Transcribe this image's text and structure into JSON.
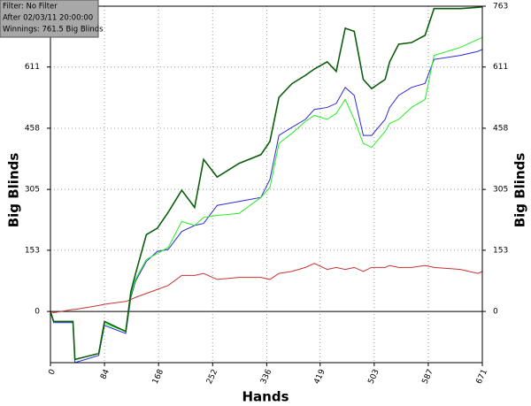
{
  "chart_data": {
    "type": "line",
    "xlabel": "Hands",
    "ylabel": "Big Blinds",
    "annotations": [
      "Filter: No Filter",
      "After 02/03/11 20:00:00",
      "Winnings: 761.5 Big Blinds"
    ],
    "x": [
      0,
      5,
      35,
      38,
      75,
      84,
      117,
      125,
      132,
      149,
      166,
      183,
      204,
      224,
      238,
      259,
      293,
      327,
      341,
      355,
      375,
      396,
      410,
      430,
      444,
      458,
      472,
      486,
      499,
      520,
      527,
      541,
      561,
      582,
      596,
      637,
      664,
      671
    ],
    "series": [
      {
        "color": "#c83232",
        "values": [
          0,
          -3,
          5,
          5,
          15,
          18,
          25,
          30,
          35,
          45,
          55,
          65,
          90,
          90,
          95,
          80,
          85,
          85,
          80,
          95,
          100,
          110,
          120,
          105,
          110,
          105,
          110,
          100,
          110,
          110,
          115,
          110,
          110,
          115,
          110,
          105,
          95,
          100
        ]
      },
      {
        "color": "#2a2ad8",
        "values": [
          0,
          -28,
          -28,
          -128,
          -110,
          -35,
          -55,
          35,
          75,
          125,
          150,
          155,
          200,
          215,
          220,
          265,
          275,
          285,
          330,
          440,
          460,
          480,
          505,
          510,
          520,
          560,
          540,
          440,
          440,
          480,
          510,
          540,
          560,
          570,
          630,
          640,
          650,
          655
        ]
      },
      {
        "color": "#22ee22",
        "values": [
          0,
          -25,
          -25,
          -120,
          -105,
          -30,
          -50,
          40,
          80,
          130,
          145,
          160,
          225,
          215,
          235,
          240,
          245,
          285,
          310,
          420,
          445,
          475,
          490,
          480,
          495,
          530,
          480,
          420,
          410,
          450,
          470,
          480,
          510,
          530,
          640,
          660,
          680,
          685
        ]
      },
      {
        "color": "#0b5e0b",
        "values": [
          0,
          -25,
          -25,
          -120,
          -105,
          -25,
          -50,
          50,
          93,
          192,
          208,
          248,
          303,
          260,
          380,
          336,
          370,
          392,
          425,
          535,
          569,
          590,
          606,
          624,
          600,
          708,
          700,
          580,
          557,
          580,
          624,
          668,
          672,
          690,
          757,
          757,
          760,
          761.5
        ]
      }
    ],
    "xlim": [
      0,
      671
    ],
    "ylim": [
      -128,
      763
    ],
    "xticks": [
      0,
      84,
      168,
      252,
      336,
      419,
      503,
      587,
      671
    ],
    "yticks": [
      0,
      153,
      305,
      458,
      611,
      763
    ],
    "grid": true
  }
}
